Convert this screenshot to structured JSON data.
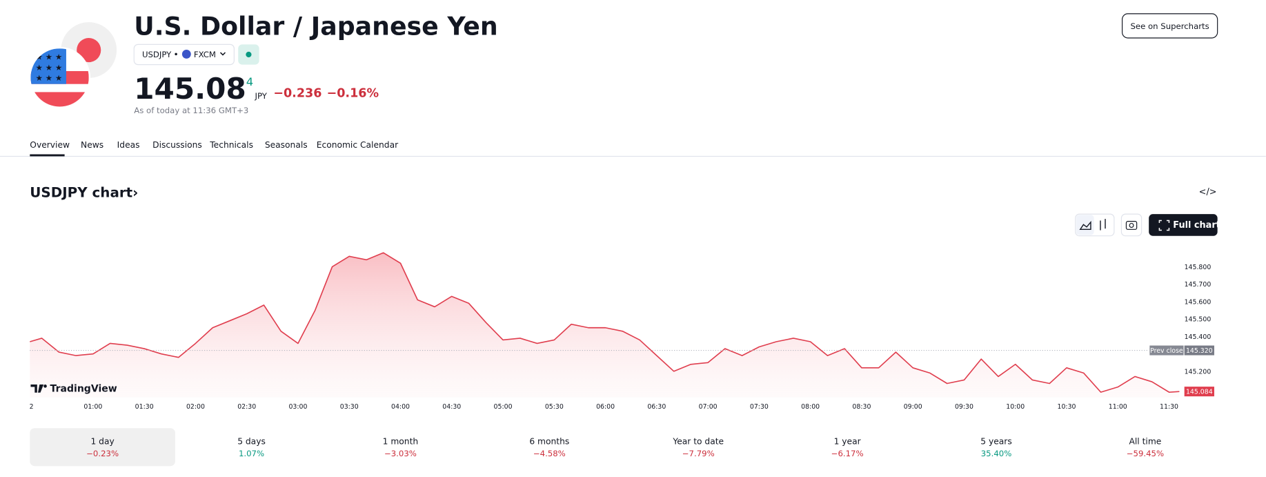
{
  "header": {
    "title": "U.S. Dollar / Japanese Yen",
    "symbol": "USDJPY",
    "exchange": "FXCM",
    "price": "145.08",
    "price_sup": "4",
    "currency": "JPY",
    "change": "−0.236",
    "change_pct": "−0.16%",
    "as_of": "As of today at 11:36 GMT+3",
    "button": "See on Supercharts"
  },
  "tabs": [
    "Overview",
    "News",
    "Ideas",
    "Discussions",
    "Technicals",
    "Seasonals",
    "Economic Calendar"
  ],
  "chart_section": {
    "title": "USDJPY chart›",
    "full_chart": "Full chart",
    "brand": "TradingView",
    "prev_close_label": "Prev close",
    "prev_close": {
      "value": 145.32,
      "label": "145.320"
    },
    "last": {
      "value": 145.084,
      "label": "145.084"
    },
    "chart": {
      "type": "line",
      "color": "#e03e4e",
      "x": [
        "00:23",
        "00:30",
        "00:40",
        "00:50",
        "01:00",
        "01:10",
        "01:20",
        "01:30",
        "01:40",
        "01:50",
        "02:00",
        "02:10",
        "02:20",
        "02:30",
        "02:40",
        "02:50",
        "03:00",
        "03:10",
        "03:20",
        "03:30",
        "03:40",
        "03:50",
        "04:00",
        "04:10",
        "04:20",
        "04:30",
        "04:40",
        "04:50",
        "05:00",
        "05:10",
        "05:20",
        "05:30",
        "05:40",
        "05:50",
        "06:00",
        "06:10",
        "06:20",
        "06:30",
        "06:40",
        "06:50",
        "07:00",
        "07:10",
        "07:20",
        "07:30",
        "07:40",
        "07:50",
        "08:00",
        "08:10",
        "08:20",
        "08:30",
        "08:40",
        "08:50",
        "09:00",
        "09:10",
        "09:20",
        "09:30",
        "09:40",
        "09:50",
        "10:00",
        "10:10",
        "10:20",
        "10:30",
        "10:40",
        "10:50",
        "11:00",
        "11:10",
        "11:20",
        "11:30",
        "11:36"
      ],
      "values": [
        145.37,
        145.39,
        145.31,
        145.29,
        145.3,
        145.36,
        145.35,
        145.33,
        145.3,
        145.28,
        145.36,
        145.45,
        145.49,
        145.53,
        145.58,
        145.43,
        145.36,
        145.55,
        145.8,
        145.86,
        145.84,
        145.88,
        145.82,
        145.61,
        145.57,
        145.63,
        145.59,
        145.48,
        145.38,
        145.39,
        145.36,
        145.38,
        145.47,
        145.45,
        145.45,
        145.43,
        145.38,
        145.29,
        145.2,
        145.24,
        145.25,
        145.33,
        145.29,
        145.34,
        145.37,
        145.39,
        145.37,
        145.29,
        145.33,
        145.22,
        145.22,
        145.31,
        145.22,
        145.19,
        145.13,
        145.15,
        145.27,
        145.17,
        145.24,
        145.15,
        145.13,
        145.22,
        145.19,
        145.08,
        145.11,
        145.17,
        145.14,
        145.08,
        145.084
      ],
      "xlim": [
        "00:23",
        "11:38"
      ],
      "xticks": [
        {
          "value": "00:23",
          "label": "2"
        },
        "01:00",
        "01:30",
        "02:00",
        "02:30",
        "03:00",
        "03:30",
        "04:00",
        "04:30",
        "05:00",
        "05:30",
        "06:00",
        "06:30",
        "07:00",
        "07:30",
        "08:00",
        "08:30",
        "09:00",
        "09:30",
        "10:00",
        "10:30",
        "11:00",
        "11:30"
      ],
      "ylim": [
        145.05,
        145.94
      ],
      "yticks": [
        {
          "value": 145.8,
          "label": "145.800"
        },
        {
          "value": 145.7,
          "label": "145.700"
        },
        {
          "value": 145.6,
          "label": "145.600"
        },
        {
          "value": 145.5,
          "label": "145.500"
        },
        {
          "value": 145.4,
          "label": "145.400"
        },
        {
          "value": 145.2,
          "label": "145.200"
        }
      ]
    }
  },
  "periods": [
    {
      "label": "1 day",
      "change": "−0.23%",
      "color": "#cc2f3c"
    },
    {
      "label": "5 days",
      "change": "1.07%",
      "color": "#089981"
    },
    {
      "label": "1 month",
      "change": "−3.03%",
      "color": "#cc2f3c"
    },
    {
      "label": "6 months",
      "change": "−4.58%",
      "color": "#cc2f3c"
    },
    {
      "label": "Year to date",
      "change": "−7.79%",
      "color": "#cc2f3c"
    },
    {
      "label": "1 year",
      "change": "−6.17%",
      "color": "#cc2f3c"
    },
    {
      "label": "5 years",
      "change": "35.40%",
      "color": "#089981"
    },
    {
      "label": "All time",
      "change": "−59.45%",
      "color": "#cc2f3c"
    }
  ]
}
